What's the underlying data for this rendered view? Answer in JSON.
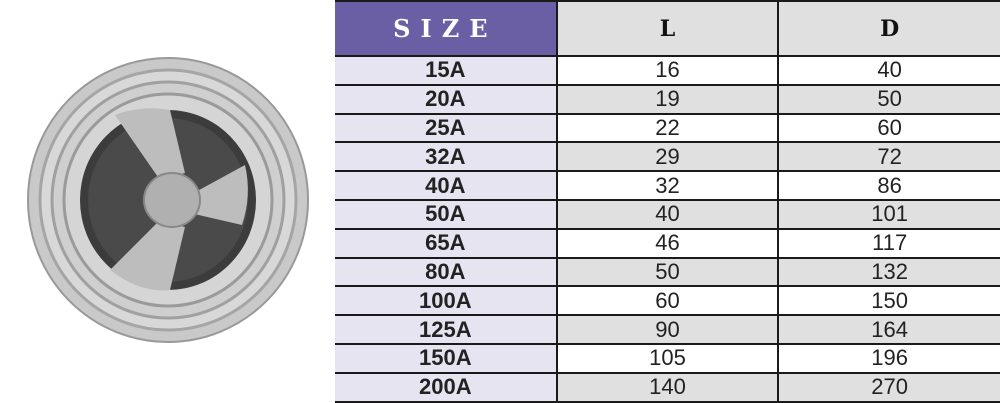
{
  "table": {
    "headers": [
      "SIZE",
      "L",
      "D"
    ],
    "rows": [
      [
        "15A",
        "16",
        "40"
      ],
      [
        "20A",
        "19",
        "50"
      ],
      [
        "25A",
        "22",
        "60"
      ],
      [
        "32A",
        "29",
        "72"
      ],
      [
        "40A",
        "32",
        "86"
      ],
      [
        "50A",
        "40",
        "101"
      ],
      [
        "65A",
        "46",
        "117"
      ],
      [
        "80A",
        "50",
        "132"
      ],
      [
        "100A",
        "60",
        "150"
      ],
      [
        "125A",
        "90",
        "164"
      ],
      [
        "150A",
        "105",
        "196"
      ],
      [
        "200A",
        "140",
        "270"
      ]
    ]
  },
  "colors": {
    "header_accent": "#6a5fa5",
    "size_column": "#e6e4f0",
    "alt_row": "#e0e0e0"
  }
}
